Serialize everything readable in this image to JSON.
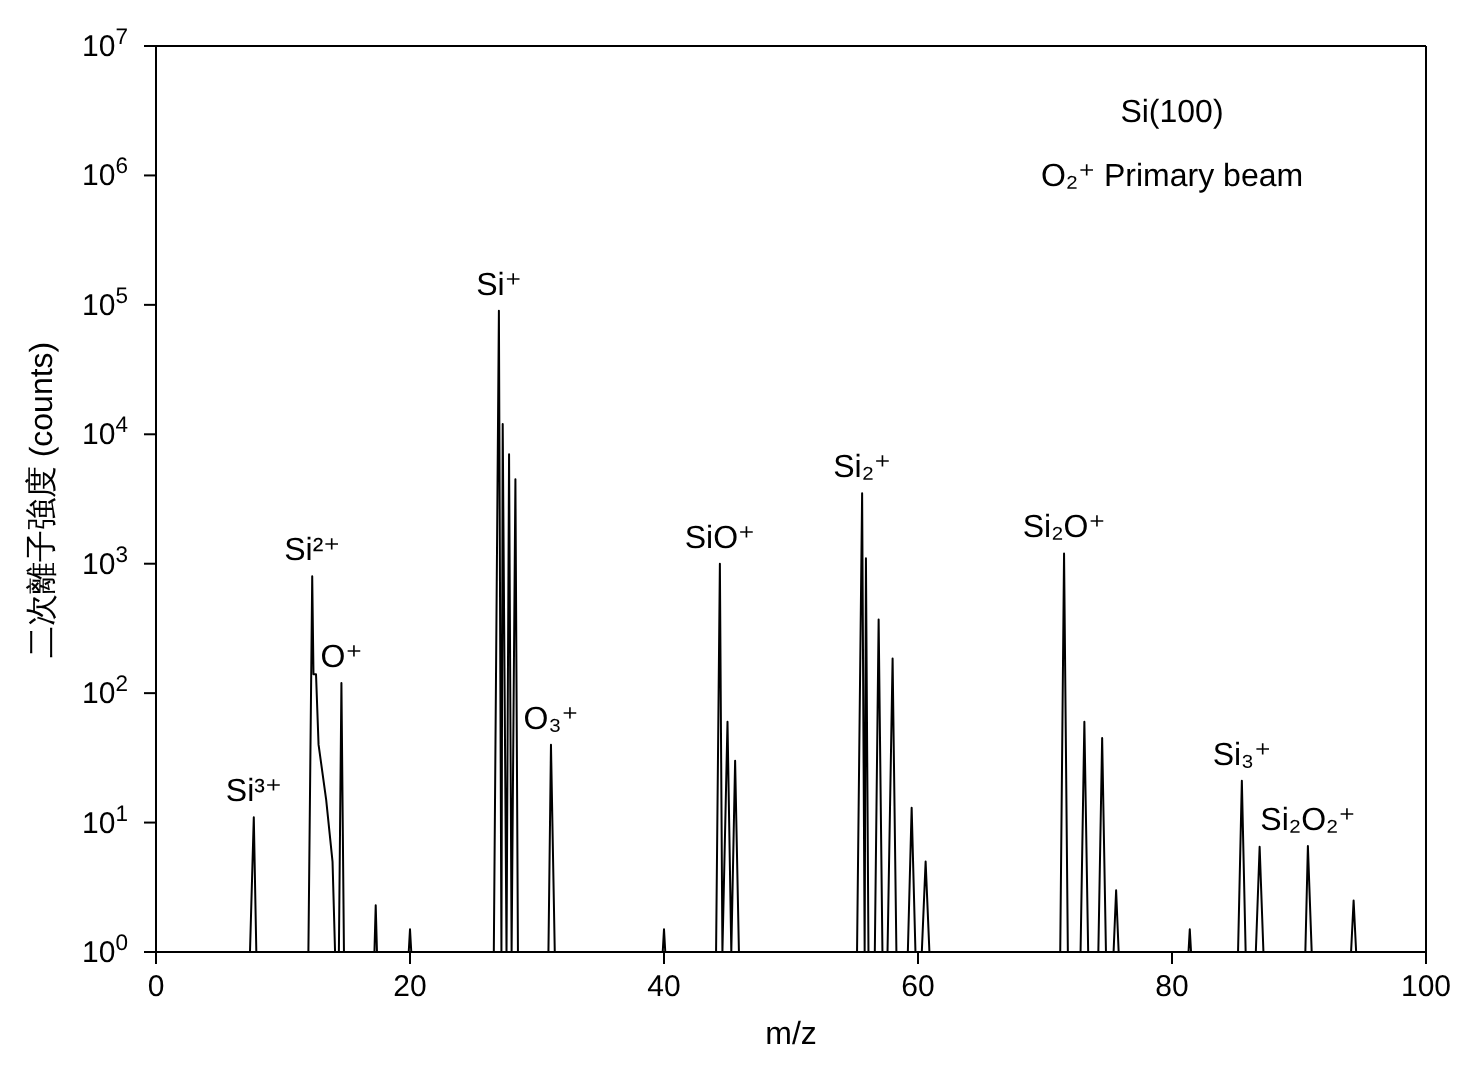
{
  "chart_data": {
    "type": "line",
    "xlabel": "m/z",
    "ylabel": "二次離子強度 (counts)",
    "log": "y",
    "grid": false,
    "legend": false,
    "marker": "none",
    "line_style": "solid",
    "xlim": [
      0,
      100
    ],
    "xticks": [
      0,
      20,
      40,
      60,
      80,
      100
    ],
    "ylim": [
      1,
      10000000
    ],
    "yticks": [
      {
        "value": 1,
        "label": "10$^{0}$"
      },
      {
        "value": 10,
        "label": "10$^{1}$"
      },
      {
        "value": 100,
        "label": "10$^{2}$"
      },
      {
        "value": 1000,
        "label": "10$^{3}$"
      },
      {
        "value": 10000,
        "label": "10$^{4}$"
      },
      {
        "value": 100000,
        "label": "10$^{5}$"
      },
      {
        "value": 1000000,
        "label": "10$^{6}$"
      },
      {
        "value": 10000000,
        "label": "10$^{7}$"
      }
    ],
    "series": [
      {
        "color": "#000000",
        "x": [
          7.4,
          7.7,
          7.9,
          12.0,
          12.3,
          12.4,
          12.6,
          12.8,
          13.4,
          13.9,
          14.1,
          14.4,
          14.6,
          14.8,
          17.2,
          17.3,
          17.4,
          19.9,
          20,
          20.1,
          26.6,
          27.0,
          27.2,
          27.3,
          27.6,
          27.8,
          28.0,
          28.3,
          28.5,
          30.9,
          31.1,
          31.4,
          39.9,
          40,
          40.1,
          44.1,
          44.4,
          44.6,
          45.0,
          45.3,
          45.6,
          45.9,
          46.2,
          55.2,
          55.6,
          55.8,
          55.9,
          56.1,
          56.6,
          56.9,
          57.2,
          57.6,
          58.0,
          58.3,
          59.2,
          59.5,
          59.8,
          60.3,
          60.6,
          60.9,
          71.2,
          71.5,
          71.8,
          72.8,
          73.1,
          73.4,
          74.2,
          74.5,
          74.8,
          75.4,
          75.6,
          75.8,
          81.3,
          81.4,
          81.5,
          85.2,
          85.5,
          85.8,
          86.6,
          86.9,
          87.2,
          90.5,
          90.7,
          91,
          94.1,
          94.3,
          94.5
        ],
        "values": [
          1,
          11,
          1,
          1,
          800,
          140,
          140,
          40,
          15,
          5,
          1,
          1,
          120,
          1,
          1,
          2.3,
          1,
          1,
          1.5,
          1,
          1,
          90000,
          1,
          12000,
          1,
          7000,
          1,
          4500,
          1,
          1,
          40,
          1,
          1,
          1.5,
          1,
          1,
          1000,
          1,
          60,
          1,
          30,
          1,
          1,
          1,
          3500,
          1,
          1100,
          1,
          1,
          370,
          1,
          1,
          185,
          1,
          1,
          13,
          1,
          1,
          5,
          1,
          1,
          1200,
          1,
          1,
          60,
          1,
          1,
          45,
          1,
          1,
          3,
          1,
          1,
          1.5,
          1,
          1,
          21,
          1,
          1,
          6.5,
          1,
          1,
          6.6,
          1,
          1,
          2.5,
          1
        ]
      }
    ],
    "annotations": [
      {
        "text": "Si³⁺",
        "x": 7.7,
        "y": 11
      },
      {
        "text": "Si²⁺",
        "x": 12.3,
        "y": 800
      },
      {
        "text": "O⁺",
        "x": 14.6,
        "y": 120
      },
      {
        "text": "Si⁺",
        "x": 27.0,
        "y": 90000
      },
      {
        "text": "O₃⁺",
        "x": 31.1,
        "y": 40
      },
      {
        "text": "SiO⁺",
        "x": 44.4,
        "y": 1000
      },
      {
        "text": "Si₂⁺",
        "x": 55.6,
        "y": 3500
      },
      {
        "text": "Si₂O⁺",
        "x": 71.5,
        "y": 1200
      },
      {
        "text": "Si₃⁺",
        "x": 85.5,
        "y": 21
      },
      {
        "text": "Si₂O₂⁺",
        "x": 90.7,
        "y": 6.6
      },
      "Si(100)",
      "O₂⁺ Primary beam"
    ]
  }
}
